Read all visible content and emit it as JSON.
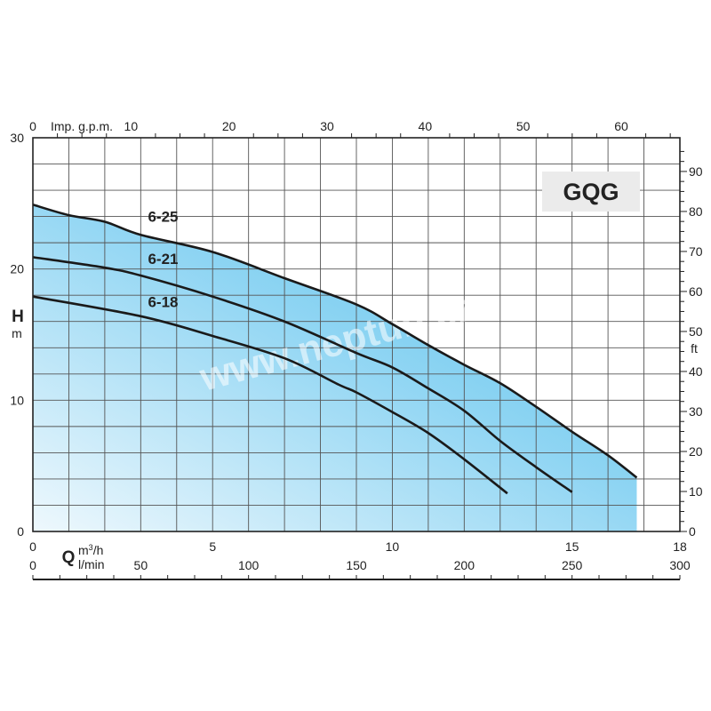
{
  "chart_data": {
    "type": "line",
    "title": "GQG",
    "watermark": "www.neptun.cz",
    "x_axis_bottom": {
      "label": "Q",
      "unit": "m³/h",
      "range": [
        0,
        18
      ],
      "ticks": [
        0,
        5,
        10,
        15,
        18
      ]
    },
    "x_axis_bottom2": {
      "unit": "l/min",
      "range": [
        0,
        300
      ],
      "ticks": [
        0,
        50,
        100,
        150,
        200,
        250,
        300
      ]
    },
    "x_axis_top": {
      "label": "Imp. g.p.m.",
      "ticks": [
        0,
        10,
        20,
        30,
        40,
        50,
        60
      ]
    },
    "y_axis_left": {
      "label": "H",
      "unit": "m",
      "range": [
        0,
        30
      ],
      "ticks": [
        0,
        10,
        20,
        30
      ]
    },
    "y_axis_right": {
      "unit": "ft",
      "ticks": [
        0,
        10,
        20,
        30,
        40,
        50,
        60,
        70,
        80,
        90
      ]
    },
    "grid": true,
    "fill_color": "#6cc8ef",
    "line_color": "#1a1a1a",
    "series": [
      {
        "name": "6-25",
        "points": [
          [
            0,
            24.9
          ],
          [
            1,
            24.1
          ],
          [
            2,
            23.6
          ],
          [
            3,
            22.6
          ],
          [
            5,
            21.3
          ],
          [
            7,
            19.3
          ],
          [
            9,
            17.3
          ],
          [
            10,
            15.8
          ],
          [
            11,
            14.2
          ],
          [
            12,
            12.7
          ],
          [
            13,
            11.3
          ],
          [
            14,
            9.5
          ],
          [
            15,
            7.6
          ],
          [
            16,
            5.8
          ],
          [
            16.8,
            4.1
          ]
        ]
      },
      {
        "name": "6-21",
        "points": [
          [
            0,
            20.9
          ],
          [
            2,
            20.1
          ],
          [
            3,
            19.5
          ],
          [
            5,
            17.9
          ],
          [
            7,
            16.0
          ],
          [
            9,
            13.6
          ],
          [
            10,
            12.5
          ],
          [
            11,
            10.9
          ],
          [
            12,
            9.2
          ],
          [
            13,
            6.9
          ],
          [
            14,
            4.9
          ],
          [
            15,
            3.0
          ]
        ]
      },
      {
        "name": "6-18",
        "points": [
          [
            0,
            17.9
          ],
          [
            3,
            16.4
          ],
          [
            5,
            14.9
          ],
          [
            7,
            13.2
          ],
          [
            8.5,
            11.2
          ],
          [
            9,
            10.6
          ],
          [
            10,
            9.1
          ],
          [
            11,
            7.5
          ],
          [
            12,
            5.5
          ],
          [
            13.2,
            2.9
          ]
        ]
      }
    ]
  }
}
